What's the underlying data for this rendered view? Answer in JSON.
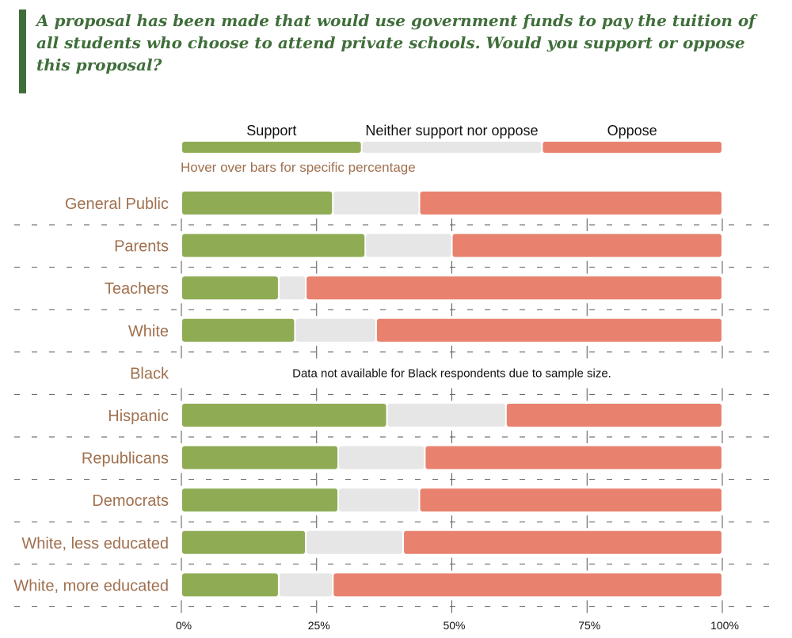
{
  "question": "A proposal has been made that would use government funds to pay the tuition of all students who choose to attend private schools. Would you support or oppose this proposal?",
  "hint": "Hover over bars for specific percentage",
  "colors": {
    "accent": "#3f6e3a",
    "support": "#8fac55",
    "neither": "#e6e6e6",
    "oppose": "#e8826f",
    "label": "#a0704f"
  },
  "chart_data": {
    "type": "bar",
    "orientation": "horizontal",
    "stacked": true,
    "legend": {
      "position": "top",
      "entries": [
        "Support",
        "Neither support nor oppose",
        "Oppose"
      ]
    },
    "categories": [
      "General Public",
      "Parents",
      "Teachers",
      "White",
      "Black",
      "Hispanic",
      "Republicans",
      "Democrats",
      "White, less educated",
      "White, more educated"
    ],
    "series": [
      {
        "name": "Support",
        "values": [
          28,
          34,
          18,
          21,
          null,
          38,
          29,
          29,
          23,
          18
        ]
      },
      {
        "name": "Neither support nor oppose",
        "values": [
          16,
          16,
          5,
          15,
          null,
          22,
          16,
          15,
          18,
          10
        ]
      },
      {
        "name": "Oppose",
        "values": [
          56,
          50,
          77,
          64,
          null,
          40,
          55,
          56,
          59,
          72
        ]
      }
    ],
    "notes": [
      {
        "category": "Black",
        "text": "Data not available for Black respondents due to sample size."
      }
    ],
    "xlim": [
      0,
      100
    ],
    "xticks": [
      0,
      25,
      50,
      75,
      100
    ],
    "xtick_labels": [
      "0%",
      "25%",
      "50%",
      "75%",
      "100%"
    ],
    "grid": true
  }
}
